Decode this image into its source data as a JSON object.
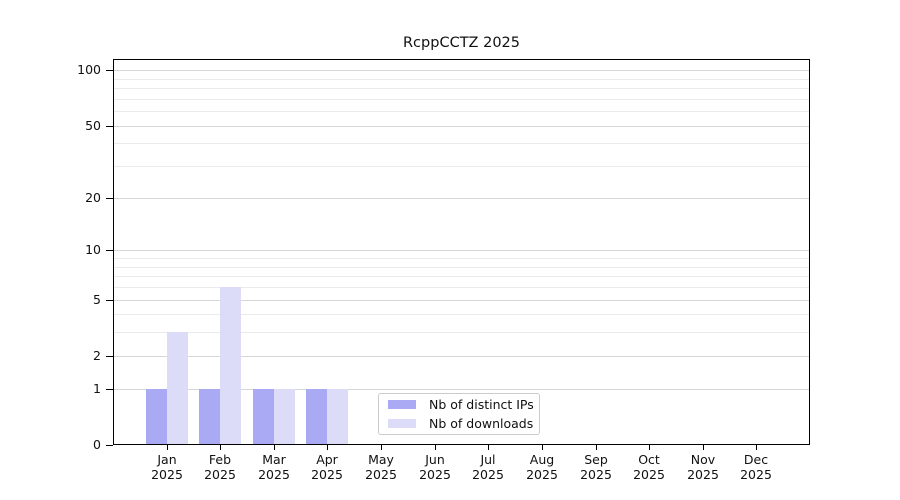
{
  "chart_data": {
    "type": "bar",
    "title": "RcppCCTZ 2025",
    "categories": [
      "Jan",
      "Feb",
      "Mar",
      "Apr",
      "May",
      "Jun",
      "Jul",
      "Aug",
      "Sep",
      "Oct",
      "Nov",
      "Dec"
    ],
    "category_year": "2025",
    "series": [
      {
        "name": "Nb of distinct IPs",
        "color": "#a9a9f4",
        "values": [
          1,
          1,
          1,
          1,
          0,
          0,
          0,
          0,
          0,
          0,
          0,
          0
        ]
      },
      {
        "name": "Nb of downloads",
        "color": "#dcdcf9",
        "values": [
          3,
          6,
          1,
          1,
          0,
          0,
          0,
          0,
          0,
          0,
          0,
          0
        ]
      }
    ],
    "yscale": "log1p",
    "ylim": [
      0,
      115
    ],
    "ytick_values": [
      0,
      1,
      2,
      5,
      10,
      20,
      50,
      100
    ],
    "grid_values": [
      1,
      2,
      3,
      4,
      5,
      6,
      7,
      8,
      9,
      10,
      20,
      30,
      40,
      50,
      60,
      70,
      80,
      90,
      100
    ],
    "legend": {
      "position": "lower center",
      "entries": [
        "Nb of distinct IPs",
        "Nb of downloads"
      ]
    },
    "colors": {
      "grid_major": "#d6d6d6",
      "grid_minor": "#ebebeb",
      "spine": "#000000",
      "legend_border": "#cccccc",
      "background": "#ffffff",
      "text": "#111111"
    }
  }
}
